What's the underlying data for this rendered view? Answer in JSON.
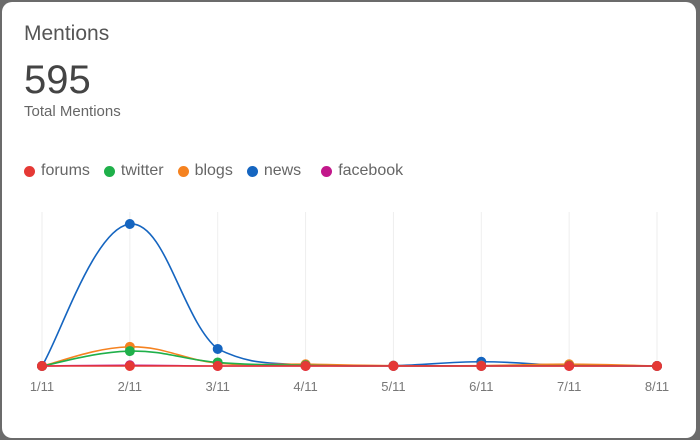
{
  "card": {
    "title": "Mentions",
    "total": "595",
    "total_label": "Total Mentions"
  },
  "chart_data": {
    "type": "line",
    "categories": [
      "1/11",
      "2/11",
      "3/11",
      "4/11",
      "5/11",
      "6/11",
      "7/11",
      "8/11"
    ],
    "ylim": [
      0,
      400
    ],
    "grid": "vertical",
    "legend": "top-left",
    "series": [
      {
        "name": "forums",
        "color": "#e53935",
        "values": [
          0,
          0,
          0,
          0,
          0,
          0,
          0,
          0
        ]
      },
      {
        "name": "twitter",
        "color": "#1fb04a",
        "values": [
          0,
          42,
          10,
          2,
          0,
          0,
          1,
          0
        ]
      },
      {
        "name": "blogs",
        "color": "#f58220",
        "values": [
          0,
          54,
          8,
          5,
          1,
          1,
          5,
          0
        ]
      },
      {
        "name": "news",
        "color": "#1565c0",
        "values": [
          0,
          400,
          48,
          2,
          1,
          12,
          1,
          0
        ]
      },
      {
        "name": "facebook",
        "color": "#c2188b",
        "values": [
          0,
          2,
          0,
          0,
          0,
          0,
          0,
          0
        ]
      }
    ]
  }
}
